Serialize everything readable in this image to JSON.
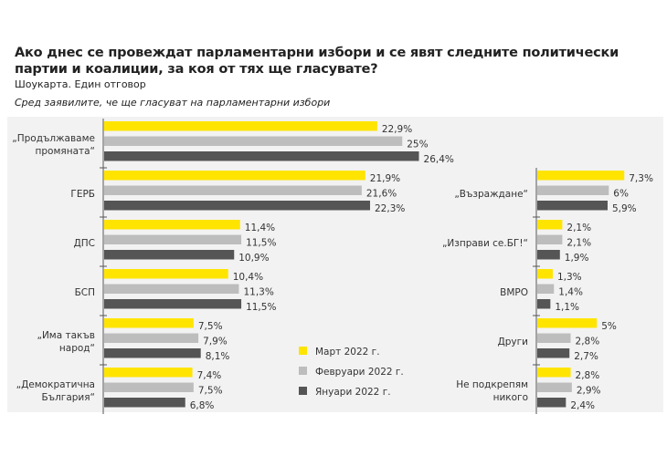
{
  "chart_data": {
    "type": "bar",
    "orientation": "horizontal",
    "title": "Ако днес се провеждат парламентарни избори и се явят следните политически партии и коалиции, за коя от тях ще гласувате?",
    "subtitle": "Шоукарта. Един отговор",
    "note": "Сред заявилите, че ще гласуват на парламентарни избори",
    "unit": "%",
    "xlim": [
      0,
      30
    ],
    "grid": false,
    "legend_placement": "bottom-center",
    "series": [
      {
        "name": "Март 2022 г.",
        "color": "#FFE400"
      },
      {
        "name": "Февруари 2022 г.",
        "color": "#BDBDBD"
      },
      {
        "name": "Януари 2022 г.",
        "color": "#555555"
      }
    ],
    "panels": [
      {
        "categories": [
          {
            "label": [
              "„Продължаваме",
              "промяната“"
            ],
            "values": [
              22.9,
              25,
              26.4
            ],
            "labels": [
              "22,9%",
              "25%",
              "26,4%"
            ]
          },
          {
            "label": [
              "ГЕРБ"
            ],
            "values": [
              21.9,
              21.6,
              22.3
            ],
            "labels": [
              "21,9%",
              "21,6%",
              "22,3%"
            ]
          },
          {
            "label": [
              "ДПС"
            ],
            "values": [
              11.4,
              11.5,
              10.9
            ],
            "labels": [
              "11,4%",
              "11,5%",
              "10,9%"
            ]
          },
          {
            "label": [
              "БСП"
            ],
            "values": [
              10.4,
              11.3,
              11.5
            ],
            "labels": [
              "10,4%",
              "11,3%",
              "11,5%"
            ]
          },
          {
            "label": [
              "„Има такъв",
              "народ“"
            ],
            "values": [
              7.5,
              7.9,
              8.1
            ],
            "labels": [
              "7,5%",
              "7,9%",
              "8,1%"
            ]
          },
          {
            "label": [
              "„Демократична",
              "България“"
            ],
            "values": [
              7.4,
              7.5,
              6.8
            ],
            "labels": [
              "7,4%",
              "7,5%",
              "6,8%"
            ]
          }
        ]
      },
      {
        "categories": [
          {
            "label": [
              "„Възраждане“"
            ],
            "values": [
              7.3,
              6,
              5.9
            ],
            "labels": [
              "7,3%",
              "6%",
              "5,9%"
            ]
          },
          {
            "label": [
              "„Изправи се.БГ!“"
            ],
            "values": [
              2.1,
              2.1,
              1.9
            ],
            "labels": [
              "2,1%",
              "2,1%",
              "1,9%"
            ]
          },
          {
            "label": [
              "ВМРО"
            ],
            "values": [
              1.3,
              1.4,
              1.1
            ],
            "labels": [
              "1,3%",
              "1,4%",
              "1,1%"
            ]
          },
          {
            "label": [
              "Други"
            ],
            "values": [
              5,
              2.8,
              2.7
            ],
            "labels": [
              "5%",
              "2,8%",
              "2,7%"
            ]
          },
          {
            "label": [
              "Не подкрепям",
              "никого"
            ],
            "values": [
              2.8,
              2.9,
              2.4
            ],
            "labels": [
              "2,8%",
              "2,9%",
              "2,4%"
            ]
          }
        ]
      }
    ]
  }
}
